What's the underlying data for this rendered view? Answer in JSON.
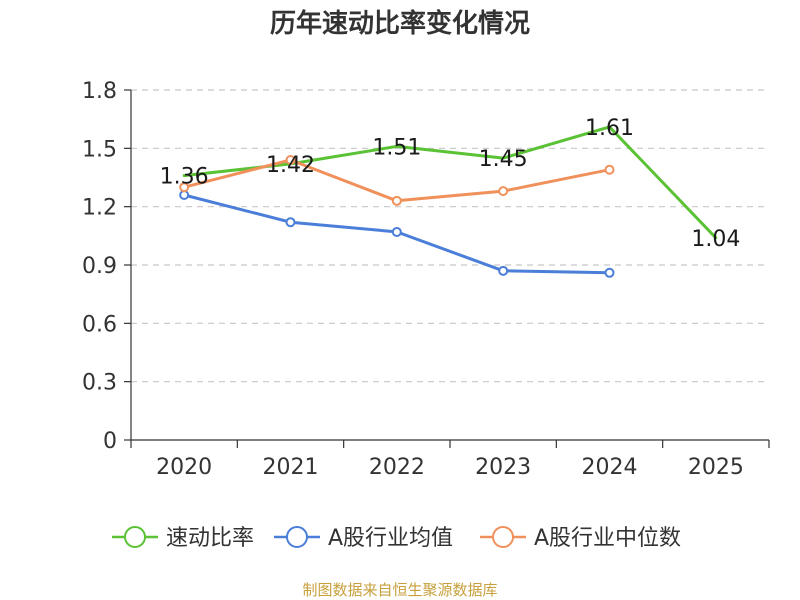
{
  "chart_data": {
    "type": "line",
    "title": "历年速动比率变化情况",
    "categories": [
      "2020",
      "2021",
      "2022",
      "2023",
      "2024",
      "2025"
    ],
    "ylim": [
      0,
      1.8
    ],
    "yticks": [
      "0",
      "0.3",
      "0.6",
      "0.9",
      "1.2",
      "1.5",
      "1.8"
    ],
    "grid": true,
    "legend_position": "bottom",
    "series": [
      {
        "name": "速动比率",
        "color": "#5ac234",
        "values": [
          1.36,
          1.42,
          1.51,
          1.45,
          1.61,
          1.04
        ],
        "labels": [
          "1.36",
          "1.42",
          "1.51",
          "1.45",
          "1.61",
          "1.04"
        ],
        "show_markers": false,
        "show_labels": true
      },
      {
        "name": "A股行业均值",
        "color": "#4a7ed8",
        "values": [
          1.26,
          1.12,
          1.07,
          0.87,
          0.86,
          null
        ],
        "show_markers": true,
        "show_labels": false
      },
      {
        "name": "A股行业中位数",
        "color": "#f0905a",
        "values": [
          1.3,
          1.44,
          1.23,
          1.28,
          1.39,
          null
        ],
        "show_markers": true,
        "show_labels": false
      }
    ],
    "source": "制图数据来自恒生聚源数据库"
  }
}
